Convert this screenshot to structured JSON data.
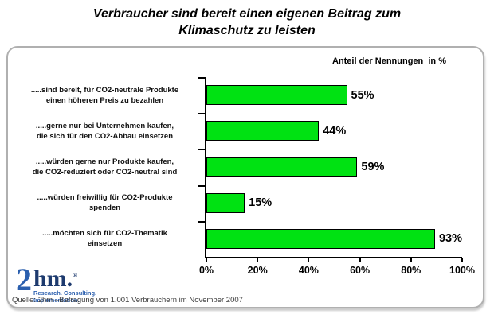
{
  "chart_data": {
    "type": "bar",
    "orientation": "horizontal",
    "title": "Verbraucher sind bereit einen eigenen Beitrag zum\nKlimaschutz zu leisten",
    "axis_caption": "Anteil der Nennungen  in %",
    "categories": [
      ".....sind bereit, für CO2-neutrale Produkte\neinen höheren Preis zu bezahlen",
      ".....gerne nur bei Unternehmen kaufen,\ndie sich für den CO2-Abbau einsetzen",
      ".....würden gerne nur Produkte kaufen,\ndie CO2-reduziert oder CO2-neutral sind",
      ".....würden freiwillig für CO2-Produkte\nspenden",
      ".....möchten sich für CO2-Thematik\neinsetzen"
    ],
    "values": [
      55,
      44,
      59,
      15,
      93
    ],
    "value_labels": [
      "55%",
      "44%",
      "59%",
      "15%",
      "93%"
    ],
    "xlim": [
      0,
      100
    ],
    "x_tick_labels": [
      "0%",
      "20%",
      "40%",
      "60%",
      "80%",
      "100%"
    ],
    "bar_color": "#00e212",
    "bar_border_color": "#000000",
    "grid": false,
    "legend": false
  },
  "logo": {
    "digit": "2",
    "letters": "hm.",
    "reg_mark": "®",
    "tagline_line1": "Research. Consulting.",
    "tagline_line2": "Implementation."
  },
  "source": "Quelle: 2hm –Befragung von 1.001 Verbrauchern im November 2007"
}
